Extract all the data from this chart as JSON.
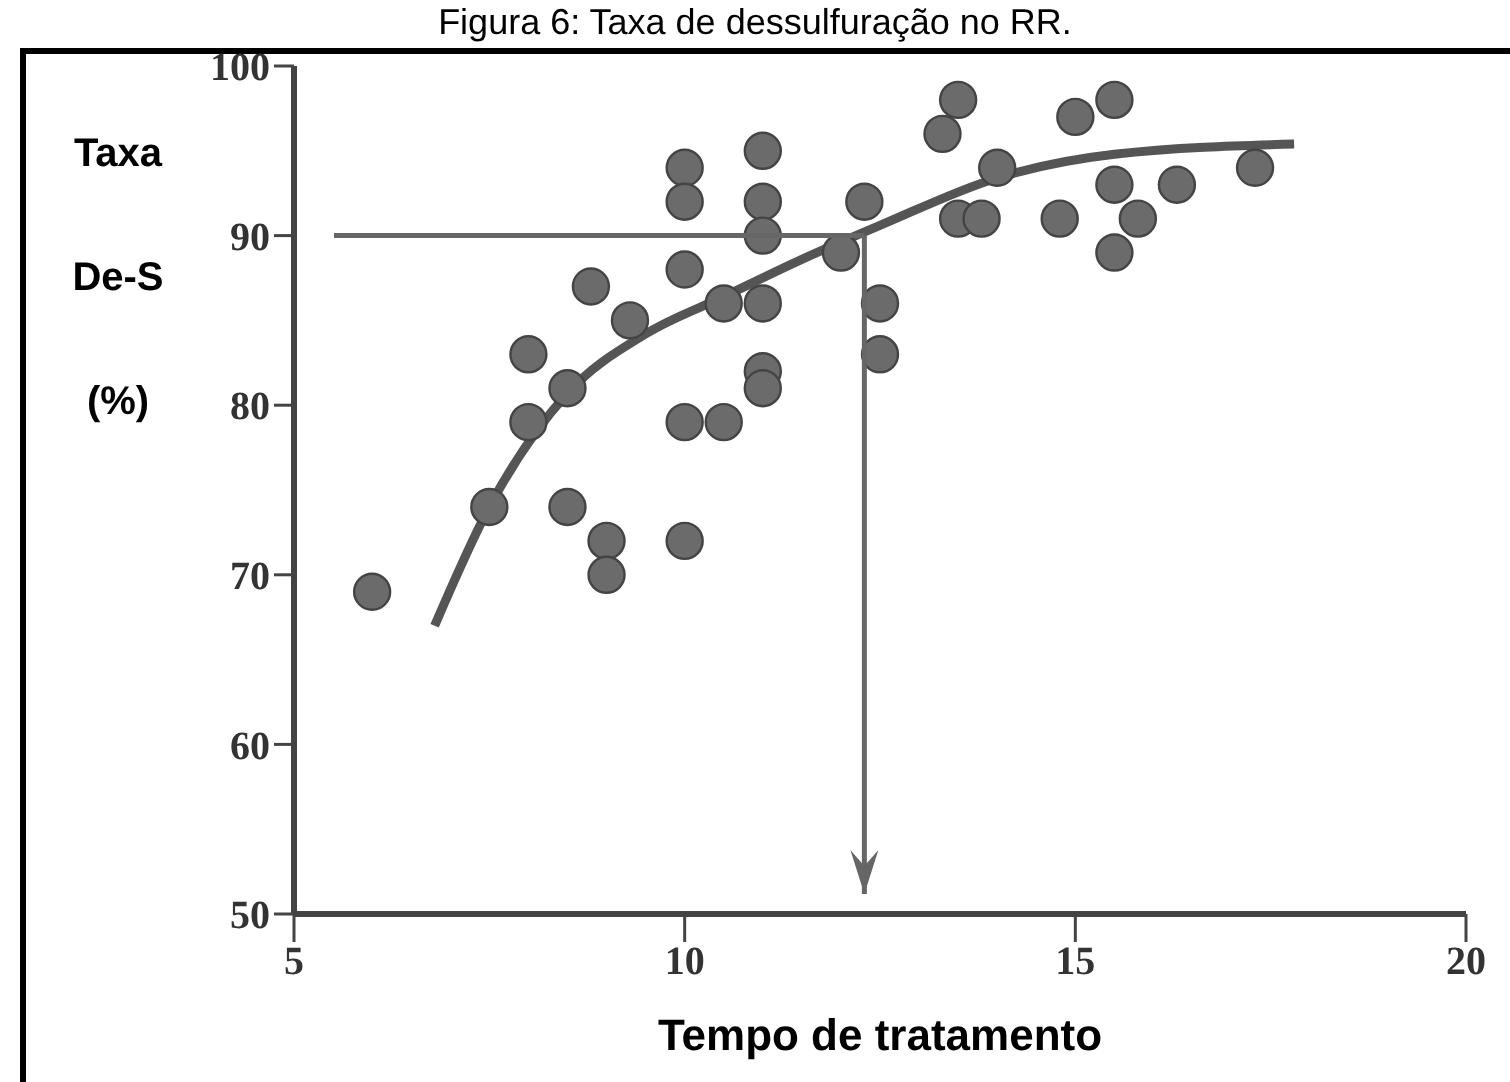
{
  "chart_data": {
    "type": "scatter",
    "title": "Figura 6: Taxa de dessulfuração no RR.",
    "xlabel": "Tempo de tratamento",
    "ylabel": "Taxa De-S (%)",
    "xlim": [
      5,
      20
    ],
    "xticks": [
      5,
      10,
      15,
      20
    ],
    "ylim": [
      50,
      100
    ],
    "yticks": [
      50,
      60,
      70,
      80,
      90,
      100
    ],
    "grid": false,
    "ref_lines": [
      {
        "axis": "y",
        "value": 90,
        "color": "#666666"
      },
      {
        "axis": "x",
        "value": 12.3,
        "color": "#666666"
      }
    ],
    "series": [
      {
        "color": "#6b6b6b",
        "marker": "circle",
        "x": [
          6.0,
          7.5,
          8.0,
          8.0,
          8.5,
          8.5,
          8.8,
          9.0,
          9.0,
          9.3,
          10.0,
          10.0,
          10.0,
          10.0,
          10.0,
          10.5,
          10.5,
          11.0,
          11.0,
          11.0,
          11.0,
          11.0,
          11.0,
          12.0,
          12.3,
          12.5,
          12.5,
          13.3,
          13.5,
          13.5,
          13.8,
          14.0,
          14.8,
          15.0,
          15.5,
          15.5,
          15.5,
          15.8,
          16.3,
          17.3
        ],
        "values": [
          69,
          74,
          83,
          79,
          81,
          74,
          87,
          72,
          70,
          85,
          94,
          92,
          88,
          79,
          72,
          86,
          79,
          95,
          92,
          90,
          86,
          82,
          81,
          89,
          92,
          86,
          83,
          96,
          98,
          91,
          91,
          94,
          91,
          97,
          98,
          93,
          89,
          91,
          93,
          94
        ]
      },
      {
        "type": "line",
        "color": "#555555",
        "x": [
          6.8,
          7.5,
          8.5,
          9.5,
          10.5,
          11.5,
          12.5,
          14.0,
          15.5,
          17.8
        ],
        "values": [
          67,
          74,
          80.7,
          84.2,
          86.4,
          88.6,
          90.6,
          93.4,
          94.8,
          95.4
        ]
      }
    ]
  }
}
